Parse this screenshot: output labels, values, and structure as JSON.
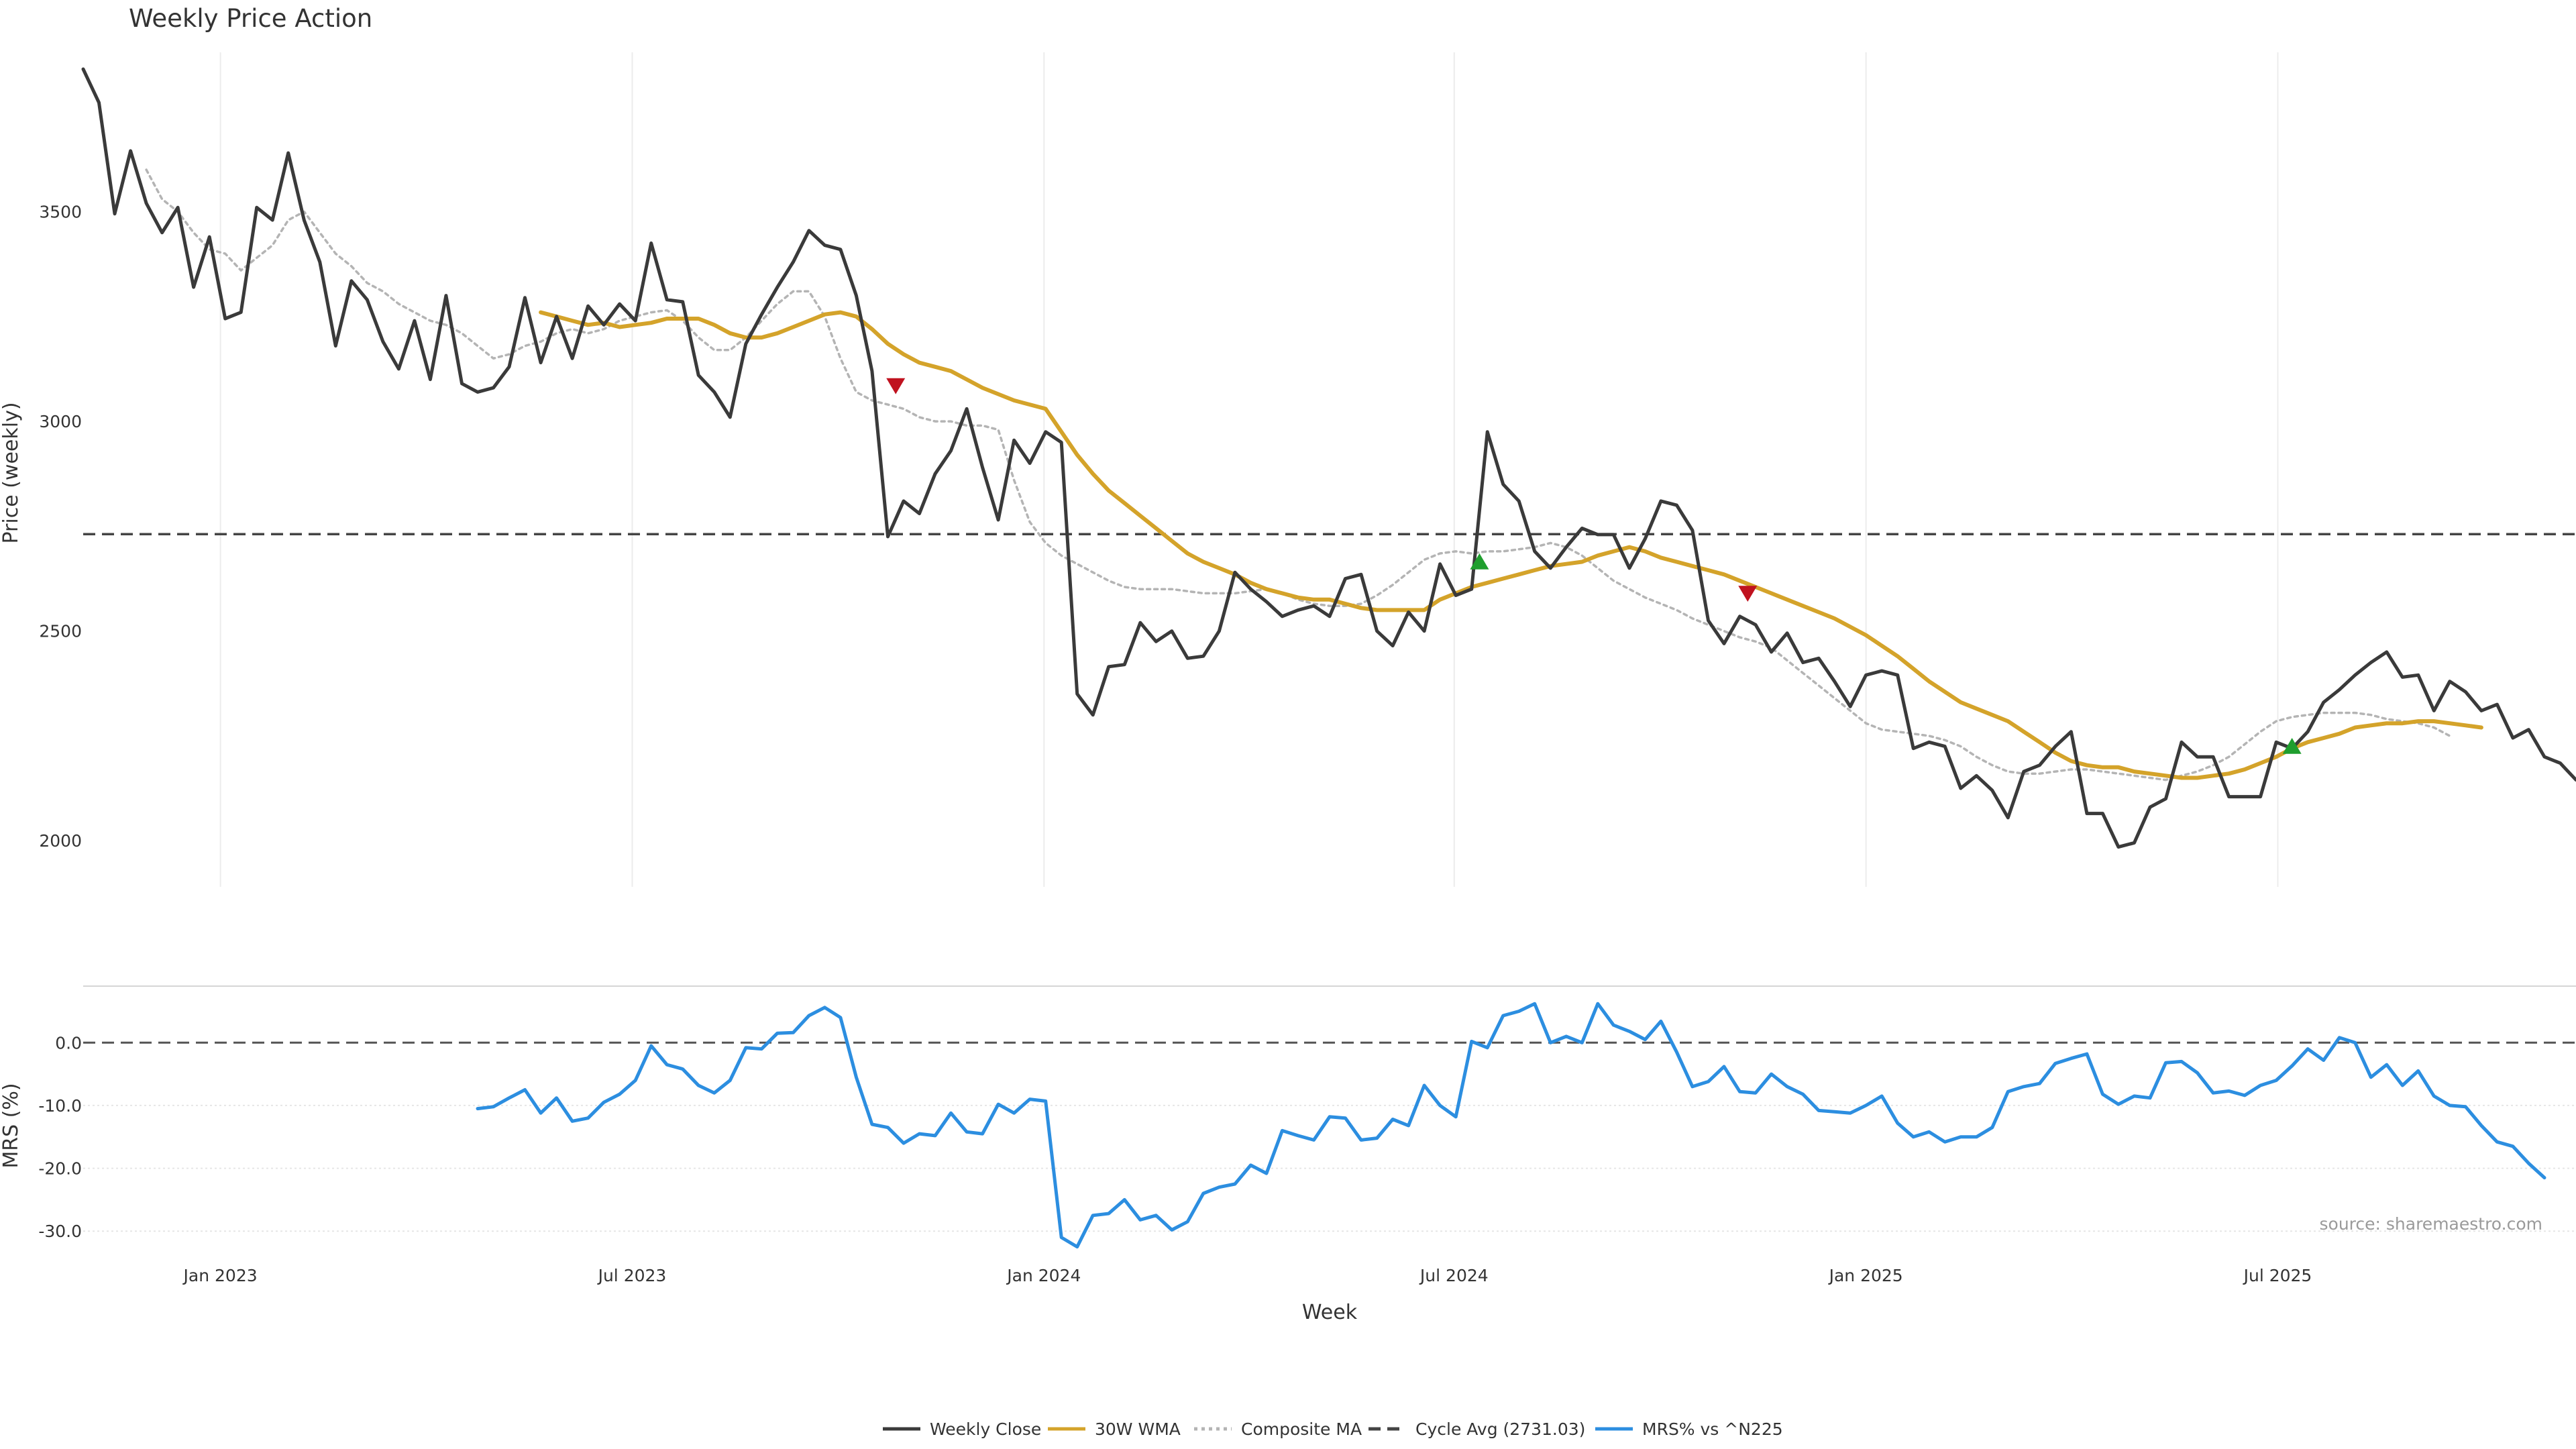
{
  "chart_data": {
    "title": "Weekly Price Action",
    "source": "source: sharemaestro.com",
    "xlabel": "Week",
    "x_ticks": [
      "Jan 2023",
      "Jul 2023",
      "Jan 2024",
      "Jul 2024",
      "Jan 2025",
      "Jul 2025"
    ],
    "x_range_weeks": [
      0,
      158
    ],
    "legend_position": "bottom-center",
    "price_panel": {
      "type": "line",
      "ylabel": "Price (weekly)",
      "ylim": [
        1890,
        3880
      ],
      "y_ticks": [
        2000,
        2500,
        3000,
        3500
      ],
      "grid": "vertical",
      "cycle_avg": 2731.03,
      "series": [
        {
          "name": "Weekly Close",
          "color": "#3a3a3a",
          "style": "solid",
          "start": 0,
          "values": [
            3840,
            3760,
            3495,
            3645,
            3520,
            3450,
            3510,
            3320,
            3440,
            3245,
            3260,
            3510,
            3480,
            3640,
            3480,
            3380,
            3180,
            3335,
            3290,
            3190,
            3125,
            3240,
            3100,
            3300,
            3090,
            3070,
            3080,
            3130,
            3295,
            3140,
            3250,
            3150,
            3275,
            3230,
            3280,
            3240,
            3425,
            3290,
            3285,
            3110,
            3070,
            3010,
            3185,
            3255,
            3320,
            3380,
            3455,
            3420,
            3410,
            3300,
            3120,
            2725,
            2810,
            2780,
            2875,
            2930,
            3030,
            2890,
            2765,
            2955,
            2900,
            2975,
            2950,
            2350,
            2300,
            2415,
            2420,
            2520,
            2475,
            2500,
            2435,
            2440,
            2500,
            2640,
            2600,
            2570,
            2535,
            2550,
            2560,
            2535,
            2625,
            2635,
            2500,
            2465,
            2545,
            2500,
            2660,
            2585,
            2600,
            2975,
            2850,
            2810,
            2690,
            2650,
            2700,
            2745,
            2730,
            2730,
            2650,
            2720,
            2810,
            2800,
            2740,
            2525,
            2470,
            2535,
            2515,
            2450,
            2495,
            2425,
            2435,
            2380,
            2320,
            2395,
            2405,
            2395,
            2220,
            2235,
            2225,
            2125,
            2155,
            2120,
            2055,
            2165,
            2180,
            2225,
            2260,
            2065,
            2065,
            1985,
            1995,
            2080,
            2100,
            2235,
            2200,
            2200,
            2105,
            2105,
            2105,
            2235,
            2220,
            2260,
            2330,
            2360,
            2395,
            2425,
            2450,
            2390,
            2395,
            2310,
            2380,
            2355,
            2310,
            2325,
            2245,
            2265,
            2200,
            2185,
            2145
          ]
        },
        {
          "name": "30W WMA",
          "color": "#d4a32a",
          "style": "solid",
          "start": 29,
          "values": [
            3260,
            3250,
            3240,
            3230,
            3235,
            3225,
            3230,
            3235,
            3245,
            3245,
            3245,
            3230,
            3210,
            3200,
            3200,
            3210,
            3225,
            3240,
            3255,
            3260,
            3250,
            3220,
            3185,
            3160,
            3140,
            3130,
            3120,
            3100,
            3080,
            3065,
            3050,
            3040,
            3030,
            2975,
            2920,
            2875,
            2835,
            2805,
            2775,
            2745,
            2715,
            2685,
            2665,
            2650,
            2635,
            2615,
            2600,
            2590,
            2580,
            2575,
            2575,
            2565,
            2555,
            2550,
            2550,
            2550,
            2550,
            2575,
            2590,
            2605,
            2615,
            2625,
            2635,
            2645,
            2655,
            2660,
            2665,
            2680,
            2690,
            2700,
            2690,
            2675,
            2665,
            2655,
            2645,
            2635,
            2620,
            2605,
            2590,
            2575,
            2560,
            2545,
            2530,
            2510,
            2490,
            2465,
            2440,
            2410,
            2380,
            2355,
            2330,
            2315,
            2300,
            2285,
            2260,
            2235,
            2210,
            2190,
            2180,
            2175,
            2175,
            2165,
            2160,
            2155,
            2150,
            2150,
            2155,
            2160,
            2170,
            2185,
            2200,
            2220,
            2235,
            2245,
            2255,
            2270,
            2275,
            2280,
            2280,
            2285,
            2285,
            2280,
            2275,
            2270
          ]
        },
        {
          "name": "Composite MA",
          "color": "#b4b4b4",
          "style": "dotted",
          "start": 4,
          "values": [
            3600,
            3530,
            3500,
            3450,
            3410,
            3400,
            3360,
            3390,
            3420,
            3480,
            3500,
            3450,
            3400,
            3370,
            3330,
            3310,
            3280,
            3260,
            3240,
            3230,
            3210,
            3180,
            3150,
            3160,
            3180,
            3190,
            3210,
            3220,
            3210,
            3220,
            3240,
            3250,
            3260,
            3265,
            3240,
            3200,
            3170,
            3170,
            3200,
            3240,
            3280,
            3310,
            3310,
            3250,
            3150,
            3070,
            3050,
            3040,
            3030,
            3010,
            3000,
            3000,
            2990,
            2990,
            2980,
            2860,
            2760,
            2710,
            2680,
            2660,
            2640,
            2620,
            2605,
            2600,
            2600,
            2600,
            2595,
            2590,
            2590,
            2590,
            2595,
            2600,
            2590,
            2575,
            2565,
            2560,
            2560,
            2565,
            2585,
            2610,
            2640,
            2670,
            2685,
            2690,
            2685,
            2690,
            2690,
            2695,
            2700,
            2710,
            2700,
            2680,
            2650,
            2620,
            2600,
            2580,
            2565,
            2550,
            2530,
            2515,
            2500,
            2485,
            2475,
            2460,
            2430,
            2400,
            2370,
            2340,
            2310,
            2280,
            2265,
            2260,
            2255,
            2250,
            2240,
            2225,
            2200,
            2180,
            2165,
            2160,
            2160,
            2165,
            2170,
            2170,
            2165,
            2160,
            2155,
            2150,
            2145,
            2155,
            2165,
            2180,
            2200,
            2230,
            2260,
            2285,
            2295,
            2300,
            2305,
            2305,
            2305,
            2300,
            2290,
            2285,
            2280,
            2270,
            2250
          ]
        }
      ],
      "markers": [
        {
          "type": "down",
          "x": 51.5,
          "y": 3085,
          "color": "#c0121f"
        },
        {
          "type": "up",
          "x": 88.5,
          "y": 2665,
          "color": "#1f9e2e"
        },
        {
          "type": "down",
          "x": 105.5,
          "y": 2590,
          "color": "#c0121f"
        },
        {
          "type": "up",
          "x": 140,
          "y": 2225,
          "color": "#1f9e2e"
        }
      ]
    },
    "mrs_panel": {
      "type": "line",
      "ylabel": "MRS (%)",
      "ylim": [
        -33.5,
        9
      ],
      "y_ticks": [
        "-30.0",
        "-20.0",
        "-10.0",
        "0.0"
      ],
      "y_tick_values": [
        -30,
        -20,
        -10,
        0
      ],
      "zero_line": 0,
      "series": [
        {
          "name": "MRS% vs ^N225",
          "color": "#2c8ee0",
          "style": "solid",
          "start": 25,
          "values": [
            -10.5,
            -10.2,
            -8.8,
            -7.5,
            -11.2,
            -8.8,
            -12.5,
            -12.0,
            -9.5,
            -8.2,
            -6.0,
            -0.5,
            -3.5,
            -4.2,
            -6.8,
            -8.0,
            -6.0,
            -0.8,
            -1.0,
            1.5,
            1.6,
            4.3,
            5.6,
            4.0,
            -5.5,
            -13.0,
            -13.5,
            -16.0,
            -14.5,
            -14.8,
            -11.2,
            -14.2,
            -14.5,
            -9.8,
            -11.2,
            -9.0,
            -9.3,
            -31.0,
            -32.5,
            -27.5,
            -27.2,
            -25.0,
            -28.2,
            -27.5,
            -29.8,
            -28.5,
            -24.0,
            -23.0,
            -22.5,
            -19.5,
            -20.8,
            -14.0,
            -14.8,
            -15.5,
            -11.8,
            -12.0,
            -15.5,
            -15.2,
            -12.2,
            -13.2,
            -6.8,
            -10.0,
            -11.8,
            0.2,
            -0.8,
            4.3,
            5.0,
            6.2,
            0.0,
            1.0,
            0.0,
            6.2,
            2.8,
            1.8,
            0.5,
            3.4,
            -1.5,
            -7.0,
            -6.2,
            -3.8,
            -7.8,
            -8.0,
            -5.0,
            -7.0,
            -8.2,
            -10.8,
            -11.0,
            -11.2,
            -10.0,
            -8.5,
            -12.8,
            -15.0,
            -14.2,
            -15.8,
            -15.0,
            -15.0,
            -13.5,
            -7.8,
            -7.0,
            -6.5,
            -3.3,
            -2.5,
            -1.8,
            -8.2,
            -9.8,
            -8.5,
            -8.8,
            -3.2,
            -3.0,
            -4.8,
            -8.0,
            -7.7,
            -8.4,
            -6.8,
            -6.0,
            -3.7,
            -1.0,
            -2.8,
            0.8,
            0.0,
            -5.5,
            -3.5,
            -6.8,
            -4.5,
            -8.5,
            -10.0,
            -10.2,
            -13.2,
            -15.8,
            -16.5,
            -19.2,
            -21.5
          ]
        }
      ]
    },
    "legend": [
      {
        "label": "Weekly Close",
        "color": "#3a3a3a",
        "style": "solid"
      },
      {
        "label": "30W WMA",
        "color": "#d4a32a",
        "style": "solid"
      },
      {
        "label": "Composite MA",
        "color": "#b4b4b4",
        "style": "dotted"
      },
      {
        "label": "Cycle Avg (2731.03)",
        "color": "#444444",
        "style": "dashed"
      },
      {
        "label": "MRS% vs ^N225",
        "color": "#2c8ee0",
        "style": "solid"
      }
    ]
  }
}
